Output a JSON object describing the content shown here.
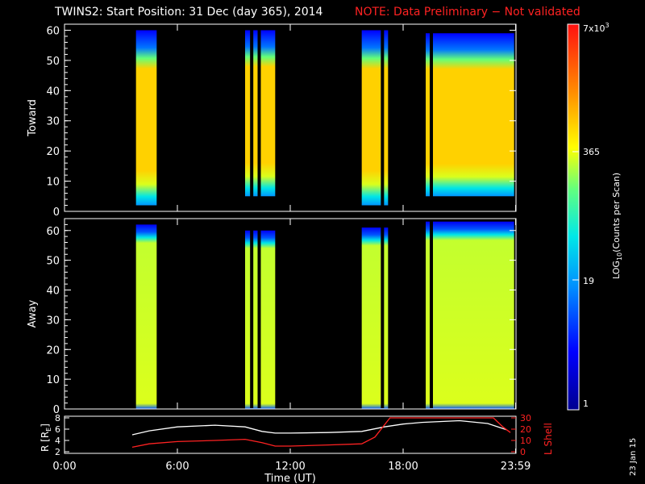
{
  "header": {
    "title": "TWINS2: Start Position: 31 Dec (day 365), 2014",
    "note": "NOTE: Data Preliminary − Not validated"
  },
  "side_date": "23 Jan 15",
  "colors": {
    "background": "#000000",
    "axis": "#ffffff",
    "note": "#ff2222",
    "r_line": "#ffffff",
    "lshell_line": "#ff2222"
  },
  "chart_data": [
    {
      "type": "heatmap",
      "title": "Toward",
      "ylabel": "Toward",
      "ylim": [
        0,
        62
      ],
      "yticks": [
        "0",
        "10",
        "20",
        "30",
        "40",
        "50",
        "60"
      ],
      "xlim_hours": [
        0,
        24
      ],
      "data_blocks": [
        {
          "x_start": 3.8,
          "x_end": 4.9,
          "y_low": 2,
          "y_high": 60,
          "core": "orange"
        },
        {
          "x_start": 9.6,
          "x_end": 11.2,
          "y_low": 5,
          "y_high": 60,
          "core": "orange",
          "gaps": [
            9.95,
            10.35
          ]
        },
        {
          "x_start": 15.8,
          "x_end": 17.2,
          "y_low": 2,
          "y_high": 60,
          "core": "orange",
          "gaps": [
            16.9
          ]
        },
        {
          "x_start": 19.2,
          "x_end": 23.9,
          "y_low": 5,
          "y_high": 59,
          "core": "orange",
          "gaps": [
            19.5
          ]
        }
      ]
    },
    {
      "type": "heatmap",
      "title": "Away",
      "ylabel": "Away",
      "ylim": [
        0,
        64
      ],
      "yticks": [
        "0",
        "10",
        "20",
        "30",
        "40",
        "50",
        "60"
      ],
      "xlim_hours": [
        0,
        24
      ],
      "data_blocks": [
        {
          "x_start": 3.8,
          "x_end": 4.9,
          "y_low": 0,
          "y_high": 62,
          "core": "yellow"
        },
        {
          "x_start": 9.6,
          "x_end": 11.2,
          "y_low": 0,
          "y_high": 60,
          "core": "yellow",
          "gaps": [
            9.95,
            10.35
          ]
        },
        {
          "x_start": 15.8,
          "x_end": 17.2,
          "y_low": 0,
          "y_high": 61,
          "core": "yellow",
          "gaps": [
            16.9
          ]
        },
        {
          "x_start": 19.2,
          "x_end": 23.9,
          "y_low": 0,
          "y_high": 63,
          "core": "yellow",
          "gaps": [
            19.5
          ]
        }
      ]
    },
    {
      "type": "line",
      "xlabel": "Time (UT)",
      "xticks": [
        "0:00",
        "6:00",
        "12:00",
        "18:00",
        "23:59"
      ],
      "xtick_hours": [
        0,
        6,
        12,
        18,
        23.98
      ],
      "ylabel_left": "R [R",
      "ylabel_left_sub": "E",
      "ylabel_left_end": "]",
      "ylim_left": [
        2,
        8
      ],
      "yticks_left": [
        "2",
        "4",
        "6",
        "8"
      ],
      "ylabel_right": "L Shell",
      "ylim_right": [
        0,
        30
      ],
      "yticks_right": [
        "0",
        "10",
        "20",
        "30"
      ],
      "series": [
        {
          "axis": "left",
          "x": [
            3.6,
            4.5,
            6,
            8,
            9.6,
            10.5,
            11.2,
            12,
            14,
            15.8,
            17,
            18,
            19,
            21,
            22.5,
            23.5
          ],
          "values": [
            5.0,
            5.7,
            6.4,
            6.7,
            6.4,
            5.6,
            5.3,
            5.3,
            5.4,
            5.6,
            6.4,
            6.9,
            7.2,
            7.5,
            7.0,
            5.9
          ]
        },
        {
          "axis": "right",
          "x": [
            3.6,
            4.5,
            6,
            8,
            9.6,
            10.5,
            11.2,
            12,
            14,
            15.8,
            16.5,
            17.3,
            22.8,
            23.3,
            23.7
          ],
          "values": [
            4,
            7,
            9,
            10,
            11,
            8,
            5,
            5,
            6,
            7,
            13,
            30,
            30,
            22,
            17
          ]
        }
      ]
    },
    {
      "type": "heatmap",
      "title": "colorbar",
      "ylabel": "LOG",
      "ylabel_sub": "10",
      "ylabel_end": "(Counts per Scan)",
      "tick_labels": [
        "1",
        "19",
        "365",
        "7x10"
      ],
      "top_exp": "3"
    }
  ]
}
